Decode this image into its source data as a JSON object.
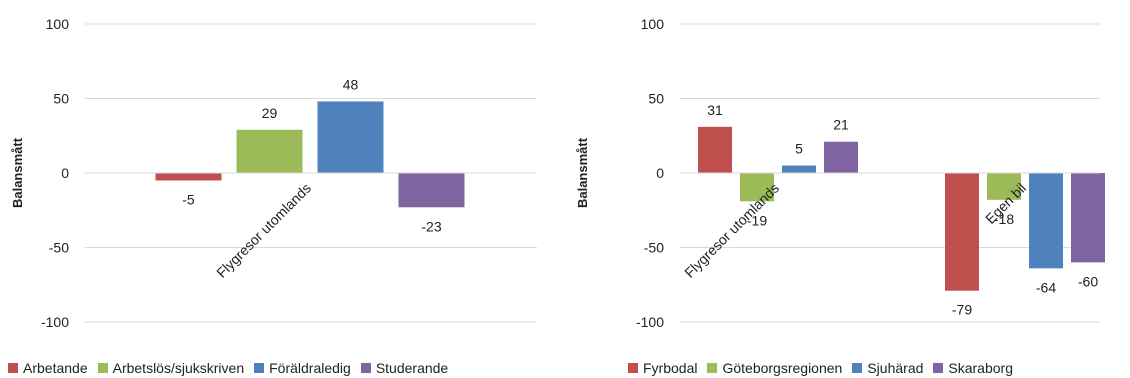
{
  "chart_data": [
    {
      "type": "bar",
      "ylabel": "Balansmått",
      "ylim": [
        -100,
        100
      ],
      "yticks": [
        "100",
        "50",
        "0",
        "-50",
        "-100"
      ],
      "grid": true,
      "legend_position": "bottom",
      "categories": [
        "Flygresor utomlands"
      ],
      "series": [
        {
          "name": "Arbetande",
          "color": "#c0504d",
          "values": [
            -5
          ]
        },
        {
          "name": "Arbetslös/sjukskriven",
          "color": "#9bbb59",
          "values": [
            29
          ]
        },
        {
          "name": "Föräldraledig",
          "color": "#4f81bd",
          "values": [
            48
          ]
        },
        {
          "name": "Studerande",
          "color": "#8064a2",
          "values": [
            -23
          ]
        }
      ]
    },
    {
      "type": "bar",
      "ylabel": "Balansmått",
      "ylim": [
        -100,
        100
      ],
      "yticks": [
        "100",
        "50",
        "0",
        "-50",
        "-100"
      ],
      "grid": true,
      "legend_position": "bottom",
      "categories": [
        "Flygresor utomlands",
        "Egen bil"
      ],
      "series": [
        {
          "name": "Fyrbodal",
          "color": "#c0504d",
          "values": [
            31,
            -79
          ]
        },
        {
          "name": "Göteborgsregionen",
          "color": "#9bbb59",
          "values": [
            -19,
            -18
          ]
        },
        {
          "name": "Sjuhärad",
          "color": "#4f81bd",
          "values": [
            5,
            -64
          ]
        },
        {
          "name": "Skaraborg",
          "color": "#8064a2",
          "values": [
            21,
            -60
          ]
        }
      ]
    }
  ]
}
